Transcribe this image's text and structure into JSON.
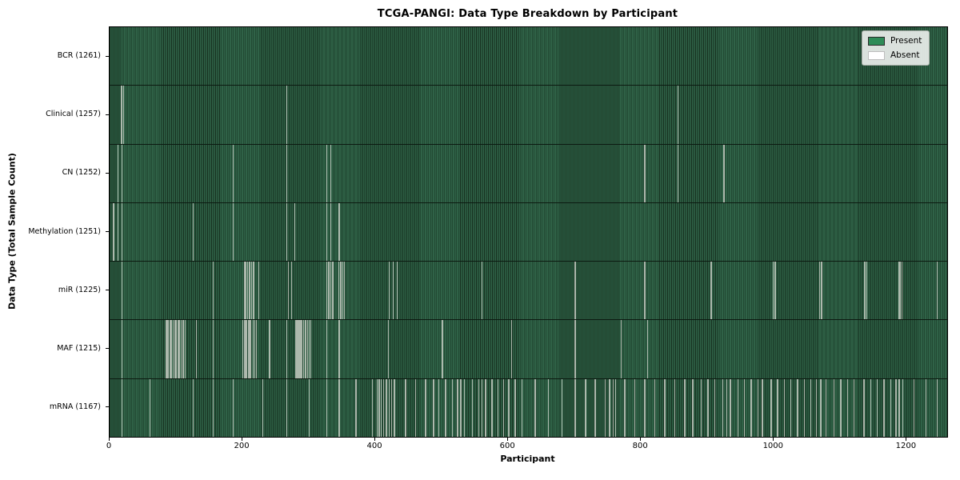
{
  "title": "TCGA-PANGI: Data Type Breakdown by Participant",
  "xlabel": "Participant",
  "ylabel": "Data Type (Total Sample Count)",
  "legend": {
    "present_label": "Present",
    "absent_label": "Absent"
  },
  "colors": {
    "present": "#2e8b57",
    "absent": "#ffffff",
    "bar_fill": "#2f6247",
    "bar_edge": "#16301f",
    "absent_stripe": "#adb9ad",
    "axis": "#000000"
  },
  "chart_data": {
    "type": "heatmap",
    "title": "TCGA-PANGI: Data Type Breakdown by Participant",
    "xlabel": "Participant",
    "ylabel": "Data Type (Total Sample Count)",
    "legend": [
      "Present",
      "Absent"
    ],
    "legend_position": "upper right",
    "grid": false,
    "total_participants": 1261,
    "x_range": [
      0,
      1261
    ],
    "x_ticks": [
      0,
      200,
      400,
      600,
      800,
      1000,
      1200
    ],
    "rows": [
      {
        "data_type": "BCR",
        "label": "BCR (1261)",
        "present_count": 1261,
        "absent_count": 0,
        "absent_participants": []
      },
      {
        "data_type": "Clinical",
        "label": "Clinical (1257)",
        "present_count": 1257,
        "absent_count": 4,
        "absent_participants": [
          17,
          20,
          266,
          855
        ]
      },
      {
        "data_type": "CN",
        "label": "CN (1252)",
        "present_count": 1252,
        "absent_count": 9,
        "absent_participants": [
          12,
          18,
          185,
          266,
          326,
          332,
          805,
          855,
          924
        ]
      },
      {
        "data_type": "Methylation",
        "label": "Methylation (1251)",
        "present_count": 1251,
        "absent_count": 10,
        "absent_participants": [
          5,
          12,
          18,
          125,
          185,
          266,
          278,
          326,
          332,
          345
        ]
      },
      {
        "data_type": "miR",
        "label": "miR (1225)",
        "present_count": 1225,
        "absent_count": 36,
        "absent_participants": [
          18,
          155,
          202,
          204,
          207,
          210,
          213,
          216,
          224,
          268,
          273,
          326,
          329,
          332,
          335,
          344,
          347,
          350,
          353,
          420,
          426,
          432,
          560,
          700,
          805,
          905,
          998,
          1001,
          1068,
          1071,
          1136,
          1139,
          1188,
          1190,
          1192,
          1245
        ]
      },
      {
        "data_type": "MAF",
        "label": "MAF (1215)",
        "present_count": 1215,
        "absent_count": 46,
        "absent_participants": [
          18,
          84,
          86,
          88,
          90,
          92,
          95,
          97,
          99,
          102,
          104,
          107,
          110,
          113,
          130,
          155,
          200,
          202,
          204,
          206,
          208,
          210,
          212,
          215,
          218,
          220,
          240,
          266,
          280,
          282,
          284,
          286,
          288,
          291,
          294,
          297,
          300,
          302,
          326,
          345,
          419,
          500,
          604,
          700,
          769,
          809
        ]
      },
      {
        "data_type": "mRNA",
        "label": "mRNA (1167)",
        "present_count": 1167,
        "absent_count": 94,
        "absent_participants": [
          18,
          60,
          125,
          155,
          185,
          230,
          266,
          300,
          326,
          345,
          370,
          395,
          402,
          405,
          408,
          412,
          416,
          420,
          424,
          428,
          445,
          460,
          475,
          487,
          495,
          505,
          515,
          523,
          528,
          533,
          545,
          555,
          560,
          565,
          575,
          584,
          592,
          600,
          610,
          620,
          640,
          660,
          680,
          700,
          716,
          730,
          745,
          752,
          757,
          761,
          775,
          790,
          805,
          820,
          835,
          850,
          865,
          877,
          890,
          900,
          910,
          922,
          928,
          934,
          945,
          955,
          965,
          975,
          982,
          995,
          1005,
          1015,
          1025,
          1035,
          1045,
          1055,
          1063,
          1070,
          1078,
          1090,
          1100,
          1110,
          1120,
          1135,
          1145,
          1155,
          1165,
          1175,
          1183,
          1188,
          1193,
          1210,
          1228,
          1245
        ]
      }
    ]
  }
}
